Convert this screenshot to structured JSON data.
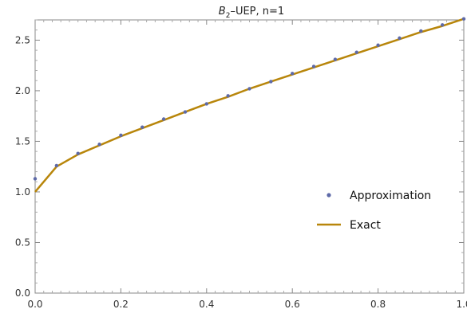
{
  "chart_data": {
    "type": "line",
    "title": {
      "base": "B",
      "subscript": "2",
      "rest": "–UEP, n=1"
    },
    "xlim": [
      0.0,
      1.0
    ],
    "ylim": [
      0.0,
      2.7
    ],
    "xticks": [
      "0.0",
      "0.2",
      "0.4",
      "0.6",
      "0.8",
      "1.0"
    ],
    "yticks": [
      "0.0",
      "0.5",
      "1.0",
      "1.5",
      "2.0",
      "2.5"
    ],
    "grid": false,
    "legend_position": "center-right",
    "series": [
      {
        "name": "Approximation",
        "style": "points",
        "color": "#5e6aa8",
        "x": [
          0.0,
          0.05,
          0.1,
          0.15,
          0.2,
          0.25,
          0.3,
          0.35,
          0.4,
          0.45,
          0.5,
          0.55,
          0.6,
          0.65,
          0.7,
          0.75,
          0.8,
          0.85,
          0.9,
          0.95,
          1.0
        ],
        "y": [
          1.13,
          1.26,
          1.38,
          1.47,
          1.56,
          1.64,
          1.72,
          1.79,
          1.87,
          1.95,
          2.02,
          2.09,
          2.17,
          2.24,
          2.31,
          2.38,
          2.45,
          2.52,
          2.59,
          2.65,
          2.71
        ]
      },
      {
        "name": "Exact",
        "style": "line",
        "color": "#b8860b",
        "x": [
          0.0,
          0.05,
          0.1,
          0.15,
          0.2,
          0.25,
          0.3,
          0.35,
          0.4,
          0.45,
          0.5,
          0.55,
          0.6,
          0.65,
          0.7,
          0.75,
          0.8,
          0.85,
          0.9,
          0.95,
          1.0
        ],
        "y": [
          1.0,
          1.25,
          1.37,
          1.46,
          1.55,
          1.63,
          1.71,
          1.79,
          1.87,
          1.94,
          2.02,
          2.09,
          2.16,
          2.23,
          2.3,
          2.37,
          2.44,
          2.51,
          2.58,
          2.64,
          2.71
        ]
      }
    ]
  }
}
